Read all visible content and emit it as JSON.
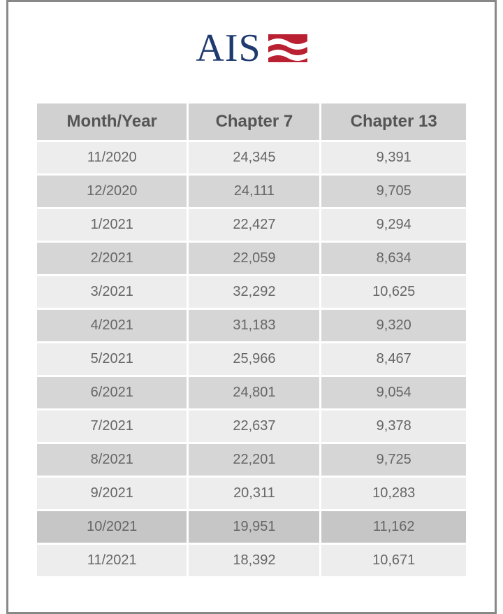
{
  "logo": {
    "text": "AIS"
  },
  "table": {
    "type": "table",
    "columns": [
      "Month/Year",
      "Chapter 7",
      "Chapter 13"
    ],
    "rows": [
      [
        "11/2020",
        "24,345",
        "9,391"
      ],
      [
        "12/2020",
        "24,111",
        "9,705"
      ],
      [
        "1/2021",
        "22,427",
        "9,294"
      ],
      [
        "2/2021",
        "22,059",
        "8,634"
      ],
      [
        "3/2021",
        "32,292",
        "10,625"
      ],
      [
        "4/2021",
        "31,183",
        "9,320"
      ],
      [
        "5/2021",
        "25,966",
        "8,467"
      ],
      [
        "6/2021",
        "24,801",
        "9,054"
      ],
      [
        "7/2021",
        "22,637",
        "9,378"
      ],
      [
        "8/2021",
        "22,201",
        "9,725"
      ],
      [
        "9/2021",
        "20,311",
        "10,283"
      ],
      [
        "10/2021",
        "19,951",
        "11,162"
      ],
      [
        "11/2021",
        "18,392",
        "10,671"
      ]
    ],
    "highlight_row_index": 11,
    "header_bg": "#d1d1d1",
    "row_odd_bg": "#ededed",
    "row_even_bg": "#d6d6d6",
    "row_highlight_bg": "#c6c6c6",
    "header_fontsize": 24,
    "cell_fontsize": 20,
    "text_color": "#666"
  },
  "colors": {
    "border": "#888",
    "logo_text": "#1f3a6e",
    "flag_red": "#b92031",
    "flag_white": "#ffffff"
  }
}
